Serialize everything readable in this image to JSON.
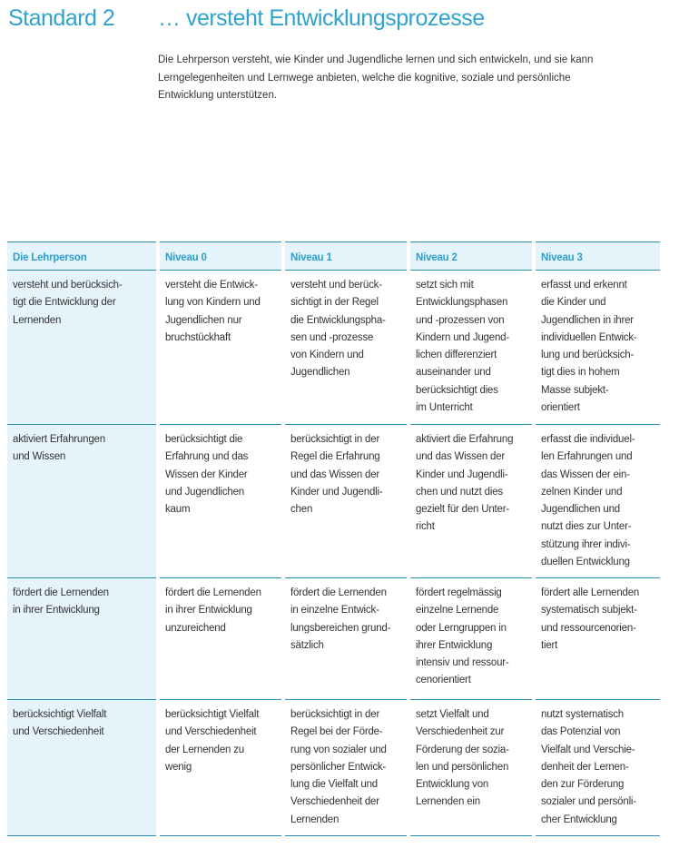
{
  "heading": {
    "standard": "Standard 2",
    "title": "… versteht Entwicklungsprozesse"
  },
  "intro": "Die Lehrperson versteht, wie Kinder und Jugendliche lernen und sich entwickeln, und sie kann\nLerngelegenheiten und Lernwege anbieten, welche die kognitive, soziale und persönliche\nEntwicklung unterstützen.",
  "colors": {
    "accent": "#2fa3cd",
    "header_bg": "#e5f3fa",
    "rule": "#2b8fb3"
  },
  "table": {
    "headers": [
      "Die Lehrperson",
      "Niveau 0",
      "Niveau 1",
      "Niveau 2",
      "Niveau 3"
    ],
    "rows": [
      [
        "versteht und berücksich-\ntigt die Entwicklung der\nLernenden",
        "versteht die Entwick-\nlung von Kindern und\nJugendlichen nur\nbruchstückhaft",
        "versteht und berück-\nsichtigt in der Regel\ndie Entwicklungspha-\nsen und -prozesse\nvon Kindern und\nJugendlichen",
        "setzt sich mit\nEntwicklungsphasen\nund -prozessen von\nKindern und Jugend-\nlichen differenziert\nauseinander und\nberücksichtigt dies\nim Unterricht",
        "erfasst und erkennt\ndie Kinder und\nJugendlichen in ihrer\nindividuellen Entwick-\nlung und berücksich-\ntigt dies in hohem\nMasse subjekt-\norientiert"
      ],
      [
        "aktiviert Erfahrungen\nund Wissen",
        "berücksichtigt die\nErfahrung und das\nWissen der Kinder\nund Jugendlichen\nkaum",
        "berücksichtigt in der\nRegel die Erfahrung\nund das Wissen der\nKinder und Jugendli-\nchen",
        "aktiviert die Erfahrung\nund das Wissen der\nKinder und Jugendli-\nchen und nutzt dies\ngezielt für den Unter-\nricht",
        "erfasst die individuel-\nlen Erfahrungen und\ndas Wissen der ein-\nzelnen Kinder und\nJugendlichen und\nnutzt dies zur Unter-\nstützung ihrer indivi-\nduellen Entwicklung"
      ],
      [
        "fördert die Lernenden\nin ihrer Entwicklung",
        "fördert die Lernenden\nin ihrer Entwicklung\nunzureichend",
        "fördert die Lernenden\nin einzelne Entwick-\nlungsbereichen grund-\nsätzlich",
        "fördert regelmässig\neinzelne Lernende\noder Lerngruppen in\nihrer Entwicklung\nintensiv und ressour-\ncenorientiert",
        "fördert alle Lernenden\nsystematisch subjekt-\nund ressourcenorien-\ntiert"
      ],
      [
        "berücksichtigt Vielfalt\nund Verschiedenheit",
        "berücksichtigt Vielfalt\nund Verschiedenheit\nder Lernenden zu\nwenig",
        "berücksichtigt in der\nRegel bei der Förde-\nrung von sozialer und\npersönlicher Entwick-\nlung die Vielfalt und\nVerschiedenheit der\nLernenden",
        "setzt Vielfalt und\nVerschiedenheit zur\nFörderung der sozia-\nlen und persönlichen\nEntwicklung von\nLernenden ein",
        "nutzt systematisch\ndas Potenzial von\nVielfalt und Verschie-\ndenheit der Lernen-\nden zur Förderung\nsozialer und persönli-\ncher Entwicklung"
      ]
    ]
  }
}
